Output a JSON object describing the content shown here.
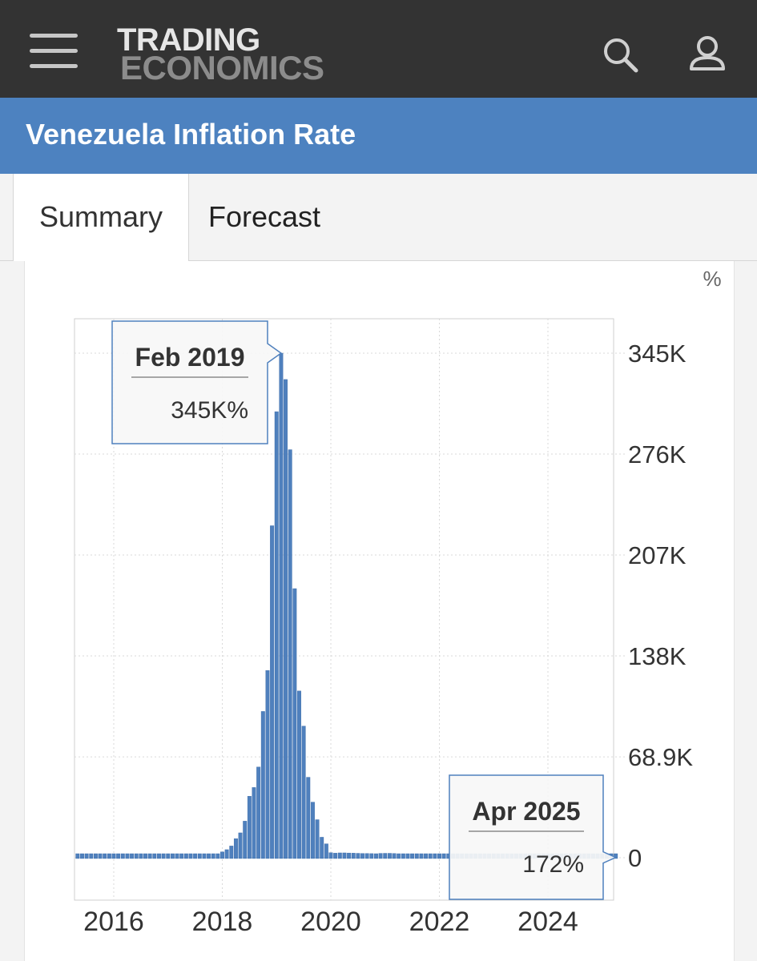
{
  "header": {
    "logo_line1": "TRADING",
    "logo_line2": "ECONOMICS",
    "menu_icon": "hamburger-menu-icon",
    "search_icon": "search-icon",
    "account_icon": "user-icon"
  },
  "page": {
    "title": "Venezuela Inflation Rate"
  },
  "tabs": [
    {
      "label": "Summary",
      "active": true
    },
    {
      "label": "Forecast",
      "active": false
    }
  ],
  "colors": {
    "topbar": "#333333",
    "titlebar": "#4d82c0",
    "bars": "#4f80bd",
    "bar_edge": "#3a6aa8"
  },
  "chart_data": {
    "type": "bar",
    "unit": "%",
    "x_ticks": [
      "2016",
      "2018",
      "2020",
      "2022",
      "2024"
    ],
    "y_ticks": [
      "0",
      "68.9K",
      "138K",
      "207K",
      "276K",
      "345K"
    ],
    "y_tick_values": [
      0,
      68900,
      138000,
      207000,
      276000,
      345000
    ],
    "ylim": [
      0,
      345000
    ],
    "xlim": [
      "2015-04",
      "2025-04"
    ],
    "grid": true,
    "y_axis_side": "right",
    "series": [
      {
        "values": [
          {
            "x": "2015-05",
            "y": 290
          },
          {
            "x": "2015-06",
            "y": 300
          },
          {
            "x": "2015-07",
            "y": 320
          },
          {
            "x": "2015-08",
            "y": 340
          },
          {
            "x": "2015-09",
            "y": 360
          },
          {
            "x": "2015-10",
            "y": 380
          },
          {
            "x": "2015-11",
            "y": 400
          },
          {
            "x": "2015-12",
            "y": 420
          },
          {
            "x": "2016-01",
            "y": 440
          },
          {
            "x": "2016-02",
            "y": 460
          },
          {
            "x": "2016-03",
            "y": 480
          },
          {
            "x": "2016-04",
            "y": 500
          },
          {
            "x": "2016-05",
            "y": 520
          },
          {
            "x": "2016-06",
            "y": 540
          },
          {
            "x": "2016-07",
            "y": 560
          },
          {
            "x": "2016-08",
            "y": 580
          },
          {
            "x": "2016-09",
            "y": 600
          },
          {
            "x": "2016-10",
            "y": 620
          },
          {
            "x": "2016-11",
            "y": 640
          },
          {
            "x": "2016-12",
            "y": 660
          },
          {
            "x": "2017-01",
            "y": 700
          },
          {
            "x": "2017-02",
            "y": 740
          },
          {
            "x": "2017-03",
            "y": 780
          },
          {
            "x": "2017-04",
            "y": 820
          },
          {
            "x": "2017-05",
            "y": 860
          },
          {
            "x": "2017-06",
            "y": 900
          },
          {
            "x": "2017-07",
            "y": 950
          },
          {
            "x": "2017-08",
            "y": 1000
          },
          {
            "x": "2017-09",
            "y": 1100
          },
          {
            "x": "2017-10",
            "y": 1300
          },
          {
            "x": "2017-11",
            "y": 1600
          },
          {
            "x": "2017-12",
            "y": 2600
          },
          {
            "x": "2018-01",
            "y": 4000
          },
          {
            "x": "2018-02",
            "y": 5500
          },
          {
            "x": "2018-03",
            "y": 8000
          },
          {
            "x": "2018-04",
            "y": 13000
          },
          {
            "x": "2018-05",
            "y": 17000
          },
          {
            "x": "2018-06",
            "y": 25000
          },
          {
            "x": "2018-07",
            "y": 42000
          },
          {
            "x": "2018-08",
            "y": 48000
          },
          {
            "x": "2018-09",
            "y": 62000
          },
          {
            "x": "2018-10",
            "y": 100000
          },
          {
            "x": "2018-11",
            "y": 128000
          },
          {
            "x": "2018-12",
            "y": 227000
          },
          {
            "x": "2019-01",
            "y": 305000
          },
          {
            "x": "2019-02",
            "y": 345000
          },
          {
            "x": "2019-03",
            "y": 327000
          },
          {
            "x": "2019-04",
            "y": 279000
          },
          {
            "x": "2019-05",
            "y": 184000
          },
          {
            "x": "2019-06",
            "y": 114000
          },
          {
            "x": "2019-07",
            "y": 90000
          },
          {
            "x": "2019-08",
            "y": 55000
          },
          {
            "x": "2019-09",
            "y": 38000
          },
          {
            "x": "2019-10",
            "y": 26000
          },
          {
            "x": "2019-11",
            "y": 14000
          },
          {
            "x": "2019-12",
            "y": 9500
          },
          {
            "x": "2020-01",
            "y": 3400
          },
          {
            "x": "2020-02",
            "y": 3100
          },
          {
            "x": "2020-03",
            "y": 3300
          },
          {
            "x": "2020-04",
            "y": 3300
          },
          {
            "x": "2020-05",
            "y": 3200
          },
          {
            "x": "2020-06",
            "y": 3100
          },
          {
            "x": "2020-07",
            "y": 3000
          },
          {
            "x": "2020-08",
            "y": 2900
          },
          {
            "x": "2020-09",
            "y": 2900
          },
          {
            "x": "2020-10",
            "y": 2800
          },
          {
            "x": "2020-11",
            "y": 2500
          },
          {
            "x": "2020-12",
            "y": 2960
          },
          {
            "x": "2021-01",
            "y": 3000
          },
          {
            "x": "2021-02",
            "y": 3000
          },
          {
            "x": "2021-03",
            "y": 2900
          },
          {
            "x": "2021-04",
            "y": 2700
          },
          {
            "x": "2021-05",
            "y": 2700
          },
          {
            "x": "2021-06",
            "y": 2700
          },
          {
            "x": "2021-07",
            "y": 2500
          },
          {
            "x": "2021-08",
            "y": 2100
          },
          {
            "x": "2021-09",
            "y": 1900
          },
          {
            "x": "2021-10",
            "y": 1500
          },
          {
            "x": "2021-11",
            "y": 1100
          },
          {
            "x": "2021-12",
            "y": 700
          },
          {
            "x": "2022-01",
            "y": 530
          },
          {
            "x": "2022-02",
            "y": 400
          },
          {
            "x": "2022-03",
            "y": 280
          },
          {
            "x": "2022-04",
            "y": 220
          },
          {
            "x": "2022-05",
            "y": 180
          },
          {
            "x": "2022-06",
            "y": 160
          },
          {
            "x": "2022-07",
            "y": 140
          },
          {
            "x": "2022-08",
            "y": 140
          },
          {
            "x": "2022-09",
            "y": 150
          },
          {
            "x": "2022-10",
            "y": 160
          },
          {
            "x": "2022-11",
            "y": 170
          },
          {
            "x": "2022-12",
            "y": 230
          },
          {
            "x": "2023-01",
            "y": 280
          },
          {
            "x": "2023-02",
            "y": 320
          },
          {
            "x": "2023-03",
            "y": 350
          },
          {
            "x": "2023-04",
            "y": 400
          },
          {
            "x": "2023-05",
            "y": 430
          },
          {
            "x": "2023-06",
            "y": 420
          },
          {
            "x": "2023-07",
            "y": 400
          },
          {
            "x": "2023-08",
            "y": 370
          },
          {
            "x": "2023-09",
            "y": 320
          },
          {
            "x": "2023-10",
            "y": 300
          },
          {
            "x": "2023-11",
            "y": 250
          },
          {
            "x": "2023-12",
            "y": 200
          },
          {
            "x": "2024-01",
            "y": 160
          },
          {
            "x": "2024-02",
            "y": 130
          },
          {
            "x": "2024-03",
            "y": 110
          },
          {
            "x": "2024-04",
            "y": 100
          },
          {
            "x": "2024-05",
            "y": 80
          },
          {
            "x": "2024-06",
            "y": 60
          },
          {
            "x": "2024-07",
            "y": 50
          },
          {
            "x": "2024-08",
            "y": 45
          },
          {
            "x": "2024-09",
            "y": 45
          },
          {
            "x": "2024-10",
            "y": 45
          },
          {
            "x": "2024-11",
            "y": 50
          },
          {
            "x": "2024-12",
            "y": 50
          },
          {
            "x": "2025-01",
            "y": 70
          },
          {
            "x": "2025-02",
            "y": 100
          },
          {
            "x": "2025-03",
            "y": 140
          },
          {
            "x": "2025-04",
            "y": 172
          }
        ]
      }
    ],
    "tooltips": [
      {
        "date": "Feb 2019",
        "value": "345K%",
        "x": "2019-02",
        "y": 345000
      },
      {
        "date": "Apr 2025",
        "value": "172%",
        "x": "2025-04",
        "y": 172
      }
    ]
  }
}
